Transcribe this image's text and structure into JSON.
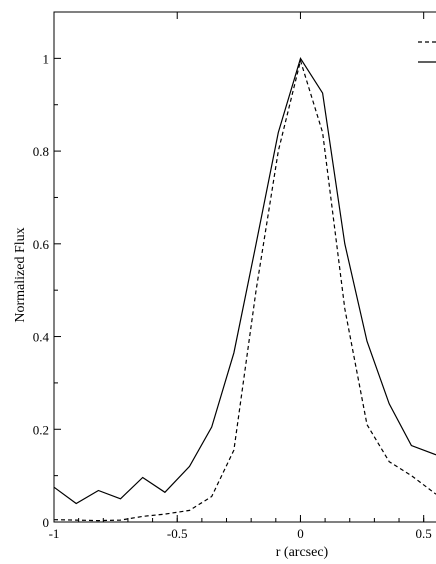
{
  "chart_data": {
    "type": "line",
    "title": "",
    "xlabel": "r (arcsec)",
    "ylabel": "Normalized Flux",
    "xlim": [
      -1,
      0.55
    ],
    "ylim": [
      0,
      1.1
    ],
    "xticks": [
      {
        "value": -1,
        "label": "-1"
      },
      {
        "value": -0.5,
        "label": "-0.5"
      },
      {
        "value": 0,
        "label": "0"
      },
      {
        "value": 0.5,
        "label": "0.5"
      }
    ],
    "yticks": [
      {
        "value": 0,
        "label": "0"
      },
      {
        "value": 0.2,
        "label": "0.2"
      },
      {
        "value": 0.4,
        "label": "0.4"
      },
      {
        "value": 0.6,
        "label": "0.6"
      },
      {
        "value": 0.8,
        "label": "0.8"
      },
      {
        "value": 1,
        "label": "1"
      }
    ],
    "grid": false,
    "legend": "top-right",
    "series": [
      {
        "style": "solid",
        "color": "#000000",
        "x": [
          -1,
          -0.91,
          -0.82,
          -0.73,
          -0.64,
          -0.55,
          -0.45,
          -0.36,
          -0.27,
          -0.18,
          -0.09,
          0,
          0.09,
          0.18,
          0.27,
          0.36,
          0.45,
          0.55
        ],
        "y": [
          0.075,
          0.04,
          0.068,
          0.05,
          0.096,
          0.064,
          0.12,
          0.205,
          0.365,
          0.6,
          0.84,
          1.0,
          0.925,
          0.6,
          0.39,
          0.255,
          0.165,
          0.145
        ]
      },
      {
        "style": "dashed",
        "color": "#000000",
        "x": [
          -1,
          -0.91,
          -0.82,
          -0.73,
          -0.64,
          -0.55,
          -0.45,
          -0.36,
          -0.27,
          -0.18,
          -0.09,
          0,
          0.09,
          0.18,
          0.27,
          0.36,
          0.45,
          0.55
        ],
        "y": [
          0.005,
          0.004,
          0.003,
          0.004,
          0.012,
          0.017,
          0.025,
          0.055,
          0.155,
          0.5,
          0.8,
          0.995,
          0.84,
          0.46,
          0.21,
          0.13,
          0.1,
          0.06
        ]
      }
    ]
  }
}
